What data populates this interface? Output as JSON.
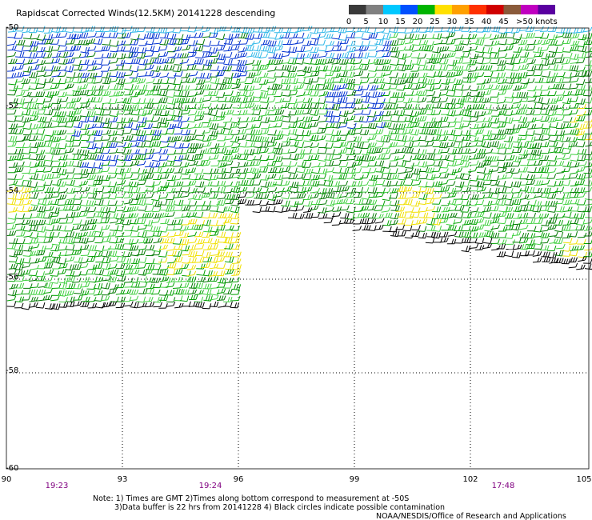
{
  "title": "Rapidscat Corrected Winds(12.5KM) 20141228 descending",
  "legend": {
    "labels": [
      "0",
      "5",
      "10",
      "15",
      "20",
      "25",
      "30",
      "35",
      "40",
      "45",
      ">50 knots"
    ],
    "colors": [
      "#3a3a3a",
      "#808080",
      "#00c8ff",
      "#0050ff",
      "#00b400",
      "#ffe000",
      "#ffa000",
      "#ff3000",
      "#d00000",
      "#8a5a3a",
      "#c000c0",
      "#5a00a0"
    ]
  },
  "axes": {
    "lat_labels": [
      "-50",
      "-52",
      "-54",
      "-56",
      "-58",
      "-60"
    ],
    "lon_labels": [
      "90",
      "93",
      "96",
      "99",
      "102",
      "105"
    ]
  },
  "times": [
    "19:23",
    "19:24",
    "17:48"
  ],
  "notes": {
    "line1": "Note: 1) Times are GMT 2)Times along bottom correspond to measurement at -50S",
    "line2": "3)Data buffer is 22 hrs from 20141228 4) Black circles indicate possible contamination",
    "credit": "NOAA/NESDIS/Office of Research and Applications"
  },
  "colors": {
    "barb_green": "#00a000",
    "barb_dark_green": "#007800",
    "barb_light_green": "#40d040",
    "barb_blue": "#0030d0",
    "barb_cyan": "#30b8e8",
    "barb_yellow": "#f0e000",
    "barb_black": "#000000",
    "time_label": "#800080"
  }
}
